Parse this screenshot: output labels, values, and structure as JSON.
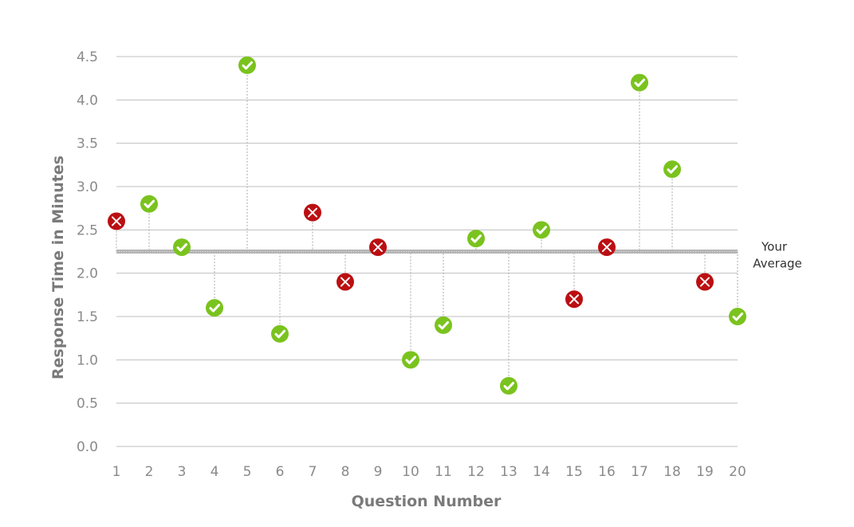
{
  "chart_data": {
    "type": "scatter",
    "title": "",
    "xlabel": "Question Number",
    "ylabel": "Response Time in Minutes",
    "ylim": [
      0,
      4.5
    ],
    "yticks": [
      "0.0",
      "0.5",
      "1.0",
      "1.5",
      "2.0",
      "2.5",
      "3.0",
      "3.5",
      "4.0",
      "4.5"
    ],
    "x": [
      1,
      2,
      3,
      4,
      5,
      6,
      7,
      8,
      9,
      10,
      11,
      12,
      13,
      14,
      15,
      16,
      17,
      18,
      19,
      20
    ],
    "values": [
      2.6,
      2.8,
      2.3,
      1.6,
      4.4,
      1.3,
      2.7,
      1.9,
      2.3,
      1.0,
      1.4,
      2.4,
      0.7,
      2.5,
      1.7,
      2.3,
      4.2,
      3.2,
      1.9,
      1.5
    ],
    "correct": [
      false,
      true,
      true,
      true,
      true,
      true,
      false,
      false,
      false,
      true,
      true,
      true,
      true,
      true,
      false,
      false,
      true,
      true,
      false,
      true
    ],
    "average": 2.25,
    "average_label_line1": "Your",
    "average_label_line2": "Average",
    "grid": true,
    "colors": {
      "correct": "#7ac31e",
      "incorrect": "#bb0f12"
    }
  }
}
